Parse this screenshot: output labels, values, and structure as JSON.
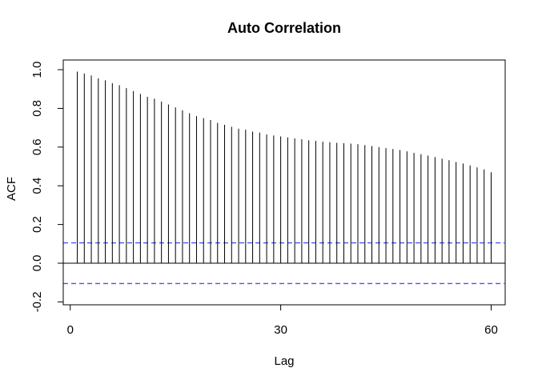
{
  "chart_data": {
    "type": "bar",
    "title": "Auto Correlation",
    "xlabel": "Lag",
    "ylabel": "ACF",
    "x": [
      1,
      2,
      3,
      4,
      5,
      6,
      7,
      8,
      9,
      10,
      11,
      12,
      13,
      14,
      15,
      16,
      17,
      18,
      19,
      20,
      21,
      22,
      23,
      24,
      25,
      26,
      27,
      28,
      29,
      30,
      31,
      32,
      33,
      34,
      35,
      36,
      37,
      38,
      39,
      40,
      41,
      42,
      43,
      44,
      45,
      46,
      47,
      48,
      49,
      50,
      51,
      52,
      53,
      54,
      55,
      56,
      57,
      58,
      59,
      60
    ],
    "values": [
      0.99,
      0.98,
      0.97,
      0.955,
      0.945,
      0.93,
      0.92,
      0.905,
      0.89,
      0.875,
      0.86,
      0.85,
      0.835,
      0.82,
      0.805,
      0.79,
      0.775,
      0.76,
      0.75,
      0.74,
      0.725,
      0.715,
      0.705,
      0.695,
      0.69,
      0.68,
      0.675,
      0.665,
      0.66,
      0.655,
      0.65,
      0.645,
      0.64,
      0.635,
      0.632,
      0.628,
      0.625,
      0.622,
      0.62,
      0.618,
      0.615,
      0.61,
      0.605,
      0.6,
      0.595,
      0.59,
      0.585,
      0.578,
      0.57,
      0.563,
      0.556,
      0.548,
      0.54,
      0.532,
      0.523,
      0.515,
      0.505,
      0.495,
      0.485,
      0.47
    ],
    "confidence_bounds": [
      0.105,
      -0.105
    ],
    "xlim": [
      -1,
      62
    ],
    "ylim": [
      -0.2,
      1.0
    ],
    "x_ticks": [
      0,
      30,
      60
    ],
    "y_ticks": [
      -0.2,
      0.0,
      0.2,
      0.4,
      0.6,
      0.8,
      1.0
    ],
    "x_tick_labels": [
      "0",
      "30",
      "60"
    ],
    "y_tick_labels": [
      "-0.2",
      "0.0",
      "0.2",
      "0.4",
      "0.6",
      "0.8",
      "1.0"
    ],
    "grid": false,
    "colors": {
      "bars": "#000000",
      "confidence": "#4f4fff",
      "frame": "#000000"
    }
  }
}
